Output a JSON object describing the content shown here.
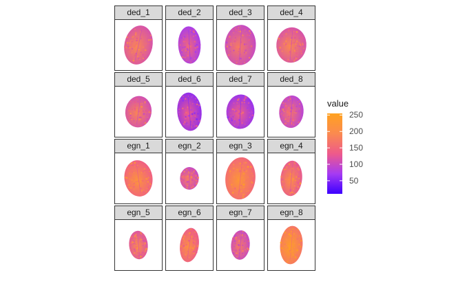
{
  "chart_data": {
    "type": "heatmap",
    "panels": [
      {
        "label": "ded_1",
        "mean_value": 165,
        "shape": {
          "rx": 0.3,
          "ry": 0.4,
          "tilt": 12
        }
      },
      {
        "label": "ded_2",
        "mean_value": 125,
        "shape": {
          "rx": 0.24,
          "ry": 0.38,
          "tilt": -3
        }
      },
      {
        "label": "ded_3",
        "mean_value": 150,
        "shape": {
          "rx": 0.33,
          "ry": 0.41,
          "tilt": 4
        }
      },
      {
        "label": "ded_4",
        "mean_value": 165,
        "shape": {
          "rx": 0.32,
          "ry": 0.36,
          "tilt": 5
        }
      },
      {
        "label": "ded_5",
        "mean_value": 160,
        "shape": {
          "rx": 0.28,
          "ry": 0.32,
          "tilt": 8
        }
      },
      {
        "label": "ded_6",
        "mean_value": 110,
        "shape": {
          "rx": 0.26,
          "ry": 0.39,
          "tilt": -5
        }
      },
      {
        "label": "ded_7",
        "mean_value": 115,
        "shape": {
          "rx": 0.3,
          "ry": 0.35,
          "tilt": 3
        }
      },
      {
        "label": "ded_8",
        "mean_value": 140,
        "shape": {
          "rx": 0.26,
          "ry": 0.33,
          "tilt": 5
        }
      },
      {
        "label": "egn_1",
        "mean_value": 190,
        "shape": {
          "rx": 0.3,
          "ry": 0.37,
          "tilt": -8
        }
      },
      {
        "label": "egn_2",
        "mean_value": 150,
        "shape": {
          "rx": 0.2,
          "ry": 0.23,
          "tilt": 3
        }
      },
      {
        "label": "egn_3",
        "mean_value": 200,
        "shape": {
          "rx": 0.32,
          "ry": 0.43,
          "tilt": 6
        }
      },
      {
        "label": "egn_4",
        "mean_value": 180,
        "shape": {
          "rx": 0.23,
          "ry": 0.36,
          "tilt": 5
        }
      },
      {
        "label": "egn_5",
        "mean_value": 170,
        "shape": {
          "rx": 0.2,
          "ry": 0.29,
          "tilt": -5
        }
      },
      {
        "label": "egn_6",
        "mean_value": 185,
        "shape": {
          "rx": 0.2,
          "ry": 0.35,
          "tilt": 8
        }
      },
      {
        "label": "egn_7",
        "mean_value": 150,
        "shape": {
          "rx": 0.2,
          "ry": 0.3,
          "tilt": 5
        }
      },
      {
        "label": "egn_8",
        "mean_value": 220,
        "shape": {
          "rx": 0.24,
          "ry": 0.39,
          "tilt": 5
        }
      }
    ],
    "legend": {
      "title": "value",
      "ticks": [
        50,
        100,
        150,
        200,
        250
      ],
      "range": [
        10,
        255
      ],
      "colors": [
        "#3c00ff",
        "#a63bf2",
        "#ee5a8a",
        "#fb8a4f",
        "#ffa21f"
      ]
    }
  }
}
